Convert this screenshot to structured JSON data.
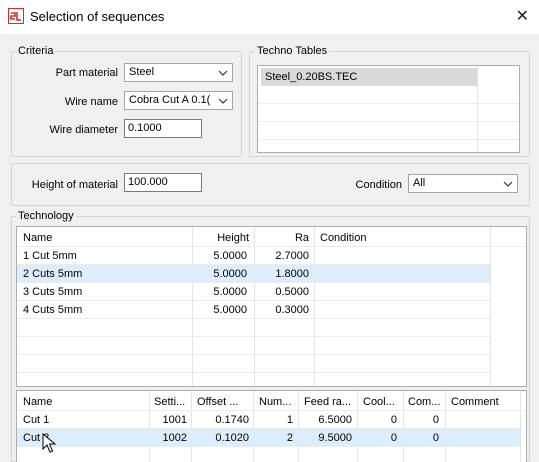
{
  "window": {
    "title": "Selection of sequences",
    "close_glyph": "✕"
  },
  "criteria": {
    "label": "Criteria",
    "part_material_label": "Part material",
    "part_material_value": "Steel",
    "wire_name_label": "Wire name",
    "wire_name_value": "Cobra Cut A 0.1(",
    "wire_diameter_label": "Wire diameter",
    "wire_diameter_value": "0.1000"
  },
  "techno_tables": {
    "label": "Techno Tables",
    "items": [
      "Steel_0.20BS.TEC"
    ]
  },
  "height_of_material": {
    "label": "Height of material",
    "value": "100.000"
  },
  "condition": {
    "label": "Condition",
    "value": "All"
  },
  "technology": {
    "label": "Technology",
    "columns": [
      "Name",
      "Height",
      "Ra",
      "Condition"
    ],
    "rows": [
      [
        "1 Cut 5mm",
        "5.0000",
        "2.7000",
        ""
      ],
      [
        "2 Cuts 5mm",
        "5.0000",
        "1.8000",
        ""
      ],
      [
        "3 Cuts 5mm",
        "5.0000",
        "0.5000",
        ""
      ],
      [
        "4 Cuts 5mm",
        "5.0000",
        "0.3000",
        ""
      ]
    ],
    "selected_row": 1
  },
  "cuts": {
    "columns": [
      "Name",
      "Setti...",
      "Offset ...",
      "Num...",
      "Feed ra...",
      "Cool...",
      "Com...",
      "Comment"
    ],
    "rows": [
      [
        "Cut 1",
        "1001",
        "0.1740",
        "1",
        "6.5000",
        "0",
        "0",
        ""
      ],
      [
        "Cut 2",
        "1002",
        "0.1020",
        "2",
        "9.5000",
        "0",
        "0",
        ""
      ]
    ],
    "selected_row": 1
  },
  "colors": {
    "selection": "#dceefc",
    "app_icon": "#c0392b"
  }
}
